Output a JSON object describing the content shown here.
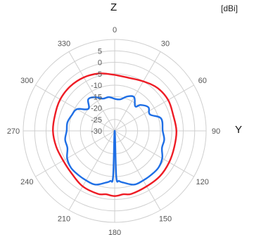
{
  "chart_data": {
    "type": "line",
    "polar": true,
    "top_axis_label": "Z",
    "right_axis_label": "Y",
    "unit_label": "[dBi]",
    "angle_ticks": [
      "0",
      "30",
      "60",
      "90",
      "120",
      "150",
      "180",
      "210",
      "240",
      "270",
      "300",
      "330"
    ],
    "angle_tick_values": [
      0,
      30,
      60,
      90,
      120,
      150,
      180,
      210,
      240,
      270,
      300,
      330
    ],
    "radial_ticks": [
      "5",
      "0",
      "-5",
      "-10",
      "-15",
      "-20",
      "-25",
      "-30"
    ],
    "radial_tick_values": [
      5,
      0,
      -5,
      -10,
      -15,
      -20,
      -25,
      -30
    ],
    "rlim": [
      -30,
      10
    ],
    "grid": true,
    "colors": {
      "series1": "#ee1c25",
      "series2": "#1f6fe5",
      "grid": "#cfcfcf"
    },
    "series": [
      {
        "angles": [
          0,
          15,
          30,
          45,
          60,
          75,
          90,
          105,
          120,
          135,
          150,
          165,
          172,
          180,
          188,
          195,
          210,
          225,
          240,
          255,
          270,
          285,
          300,
          315,
          330,
          345,
          360
        ],
        "values": [
          -5.5,
          -6,
          -5,
          -3.5,
          -3,
          -3.5,
          -3,
          -3,
          -2.5,
          -2,
          -2,
          -1.5,
          -2,
          -1.5,
          -2,
          -1.5,
          -2,
          -3.5,
          -4,
          -3.5,
          -3,
          -3,
          -2.5,
          -2.5,
          -3,
          -4,
          -5.5
        ]
      },
      {
        "angles": [
          0,
          10,
          20,
          30,
          40,
          45,
          55,
          65,
          75,
          90,
          100,
          110,
          120,
          130,
          140,
          150,
          160,
          170,
          175,
          178,
          180,
          182,
          185,
          190,
          200,
          210,
          220,
          230,
          240,
          250,
          260,
          270,
          280,
          290,
          300,
          310,
          320,
          330,
          340,
          350,
          360
        ],
        "values": [
          -16,
          -16,
          -14,
          -13,
          -16,
          -14,
          -12,
          -13,
          -9,
          -9,
          -8,
          -8,
          -6,
          -5,
          -5,
          -5,
          -5,
          -7,
          -8,
          -10,
          -30,
          -10,
          -8,
          -7,
          -5,
          -5,
          -5,
          -5,
          -6,
          -8,
          -8,
          -9,
          -9,
          -10,
          -11,
          -15,
          -12,
          -13,
          -15,
          -15,
          -16
        ]
      }
    ]
  }
}
